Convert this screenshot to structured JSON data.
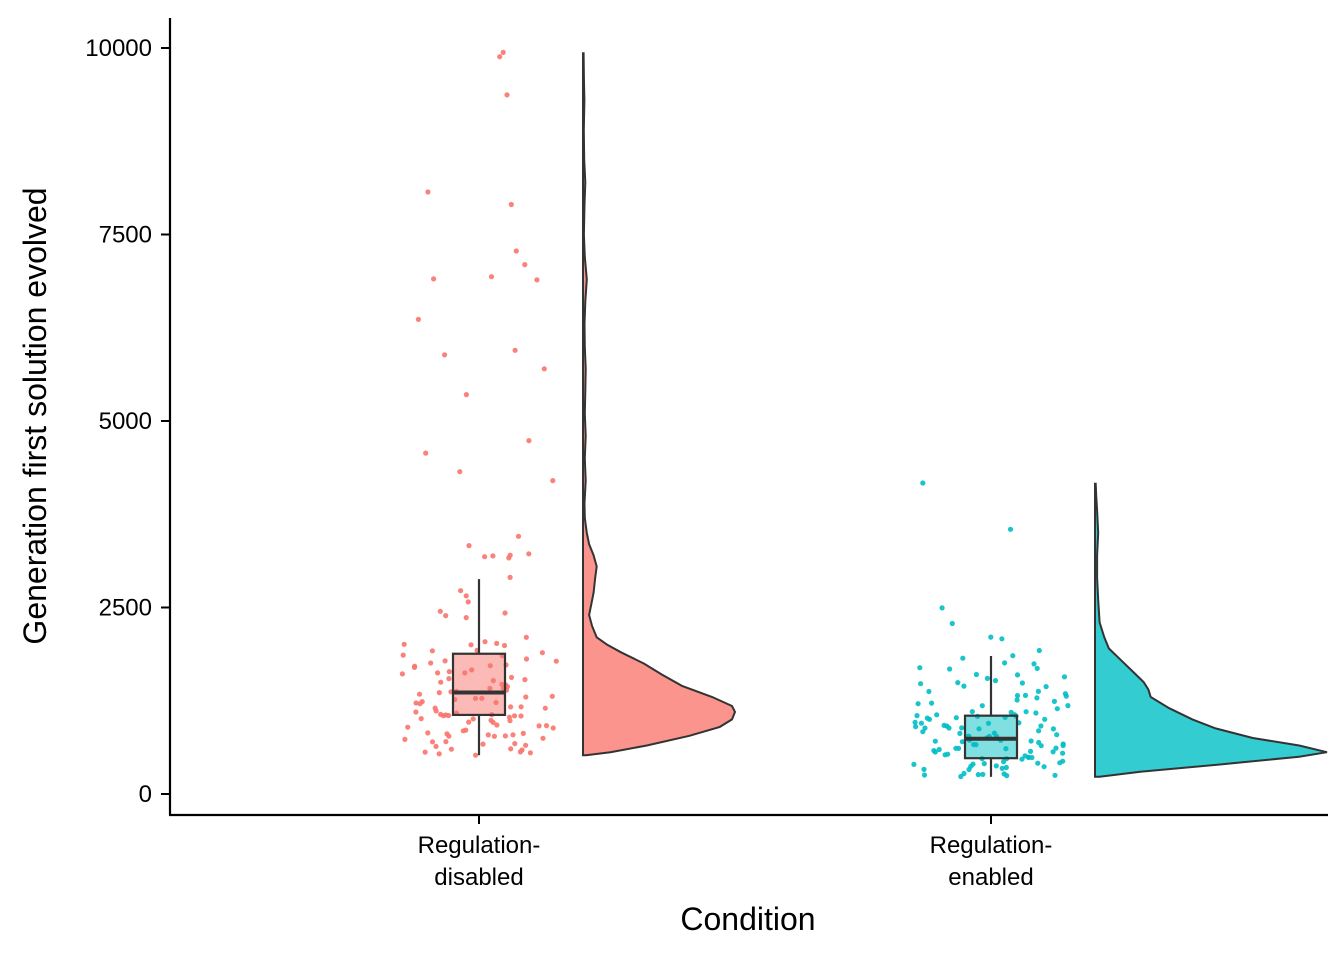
{
  "chart_data": {
    "type": "raincloud",
    "xlabel": "Condition",
    "ylabel": "Generation first solution evolved",
    "ylim": [
      -280,
      10450
    ],
    "yticks": [
      0,
      2500,
      5000,
      7500,
      10000
    ],
    "grid": false,
    "legend": "none",
    "categories": [
      {
        "name": "Regulation-disabled",
        "label_lines": [
          "Regulation-",
          "disabled"
        ],
        "color": "#F8766D",
        "box": {
          "whisker_low": 520,
          "q1": 1060,
          "median": 1360,
          "q3": 1880,
          "whisker_high": 2880
        },
        "points": [
          9930,
          9910,
          9380,
          8090,
          7920,
          7270,
          7080,
          6920,
          6920,
          6910,
          6360,
          5940,
          5880,
          5720,
          5350,
          4720,
          4560,
          4320,
          4200,
          3440,
          3350,
          3210,
          3200,
          3180,
          3170,
          3160,
          2890,
          2720,
          2680,
          2550,
          2430,
          2400,
          2380,
          2350,
          2100,
          2060,
          2030,
          2010,
          2000,
          1980,
          1950,
          1920,
          1900,
          1870,
          1850,
          1820,
          1800,
          1780,
          1760,
          1750,
          1730,
          1720,
          1700,
          1680,
          1660,
          1640,
          1620,
          1600,
          1580,
          1560,
          1540,
          1520,
          1500,
          1480,
          1460,
          1440,
          1420,
          1400,
          1390,
          1380,
          1370,
          1350,
          1340,
          1320,
          1300,
          1290,
          1280,
          1260,
          1240,
          1220,
          1200,
          1190,
          1180,
          1160,
          1150,
          1140,
          1120,
          1110,
          1100,
          1090,
          1080,
          1070,
          1060,
          1050,
          1040,
          1030,
          1020,
          1010,
          1000,
          990,
          980,
          960,
          950,
          940,
          920,
          900,
          890,
          870,
          860,
          850,
          840,
          830,
          820,
          810,
          800,
          790,
          780,
          770,
          760,
          740,
          720,
          700,
          690,
          680,
          660,
          640,
          620,
          600,
          590,
          570,
          550,
          540,
          530,
          520
        ],
        "density": [
          [
            520,
            0.02
          ],
          [
            560,
            0.18
          ],
          [
            650,
            0.42
          ],
          [
            780,
            0.7
          ],
          [
            900,
            0.9
          ],
          [
            1000,
            0.98
          ],
          [
            1100,
            1.0
          ],
          [
            1180,
            0.98
          ],
          [
            1300,
            0.85
          ],
          [
            1450,
            0.65
          ],
          [
            1600,
            0.52
          ],
          [
            1750,
            0.4
          ],
          [
            1900,
            0.25
          ],
          [
            2000,
            0.16
          ],
          [
            2100,
            0.09
          ],
          [
            2250,
            0.06
          ],
          [
            2400,
            0.04
          ],
          [
            2550,
            0.055
          ],
          [
            2700,
            0.07
          ],
          [
            2900,
            0.08
          ],
          [
            3050,
            0.09
          ],
          [
            3200,
            0.07
          ],
          [
            3350,
            0.04
          ],
          [
            3500,
            0.025
          ],
          [
            3700,
            0.012
          ],
          [
            3900,
            0.01
          ],
          [
            4200,
            0.018
          ],
          [
            4500,
            0.012
          ],
          [
            4800,
            0.018
          ],
          [
            5100,
            0.012
          ],
          [
            5400,
            0.015
          ],
          [
            5700,
            0.018
          ],
          [
            6000,
            0.012
          ],
          [
            6300,
            0.01
          ],
          [
            6600,
            0.015
          ],
          [
            6900,
            0.025
          ],
          [
            7200,
            0.012
          ],
          [
            7500,
            0.006
          ],
          [
            7900,
            0.01
          ],
          [
            8200,
            0.015
          ],
          [
            8500,
            0.008
          ],
          [
            8900,
            0.005
          ],
          [
            9300,
            0.009
          ],
          [
            9600,
            0.006
          ],
          [
            9930,
            0.004
          ]
        ]
      },
      {
        "name": "Regulation-enabled",
        "label_lines": [
          "Regulation-",
          "enabled"
        ],
        "color": "#00BFC4",
        "box": {
          "whisker_low": 230,
          "q1": 480,
          "median": 740,
          "q3": 1050,
          "whisker_high": 1850
        },
        "points": [
          4160,
          3570,
          2470,
          2300,
          2110,
          2060,
          1920,
          1860,
          1800,
          1760,
          1740,
          1720,
          1700,
          1660,
          1620,
          1600,
          1580,
          1560,
          1520,
          1500,
          1480,
          1460,
          1440,
          1420,
          1400,
          1380,
          1360,
          1340,
          1320,
          1300,
          1280,
          1260,
          1240,
          1220,
          1200,
          1180,
          1160,
          1140,
          1120,
          1100,
          1090,
          1080,
          1070,
          1060,
          1050,
          1040,
          1030,
          1020,
          1010,
          1000,
          990,
          980,
          970,
          960,
          950,
          940,
          930,
          920,
          910,
          900,
          890,
          880,
          870,
          860,
          850,
          840,
          830,
          820,
          810,
          800,
          790,
          780,
          770,
          760,
          750,
          740,
          730,
          720,
          710,
          700,
          690,
          680,
          670,
          660,
          650,
          640,
          630,
          620,
          610,
          600,
          590,
          580,
          570,
          560,
          550,
          540,
          530,
          520,
          510,
          500,
          490,
          480,
          470,
          460,
          450,
          440,
          430,
          420,
          410,
          400,
          390,
          380,
          370,
          360,
          350,
          340,
          330,
          320,
          310,
          300,
          290,
          280,
          270,
          260,
          250,
          240,
          230
        ],
        "density": [
          [
            230,
            0.02
          ],
          [
            300,
            0.2
          ],
          [
            400,
            0.55
          ],
          [
            500,
            0.88
          ],
          [
            560,
            1.0
          ],
          [
            650,
            0.88
          ],
          [
            750,
            0.68
          ],
          [
            880,
            0.52
          ],
          [
            1000,
            0.42
          ],
          [
            1150,
            0.32
          ],
          [
            1300,
            0.24
          ],
          [
            1400,
            0.23
          ],
          [
            1500,
            0.21
          ],
          [
            1650,
            0.16
          ],
          [
            1800,
            0.11
          ],
          [
            1950,
            0.06
          ],
          [
            2100,
            0.04
          ],
          [
            2300,
            0.02
          ],
          [
            2600,
            0.014
          ],
          [
            2900,
            0.009
          ],
          [
            3200,
            0.009
          ],
          [
            3500,
            0.014
          ],
          [
            3800,
            0.009
          ],
          [
            4000,
            0.005
          ],
          [
            4160,
            0.003
          ]
        ]
      }
    ]
  }
}
